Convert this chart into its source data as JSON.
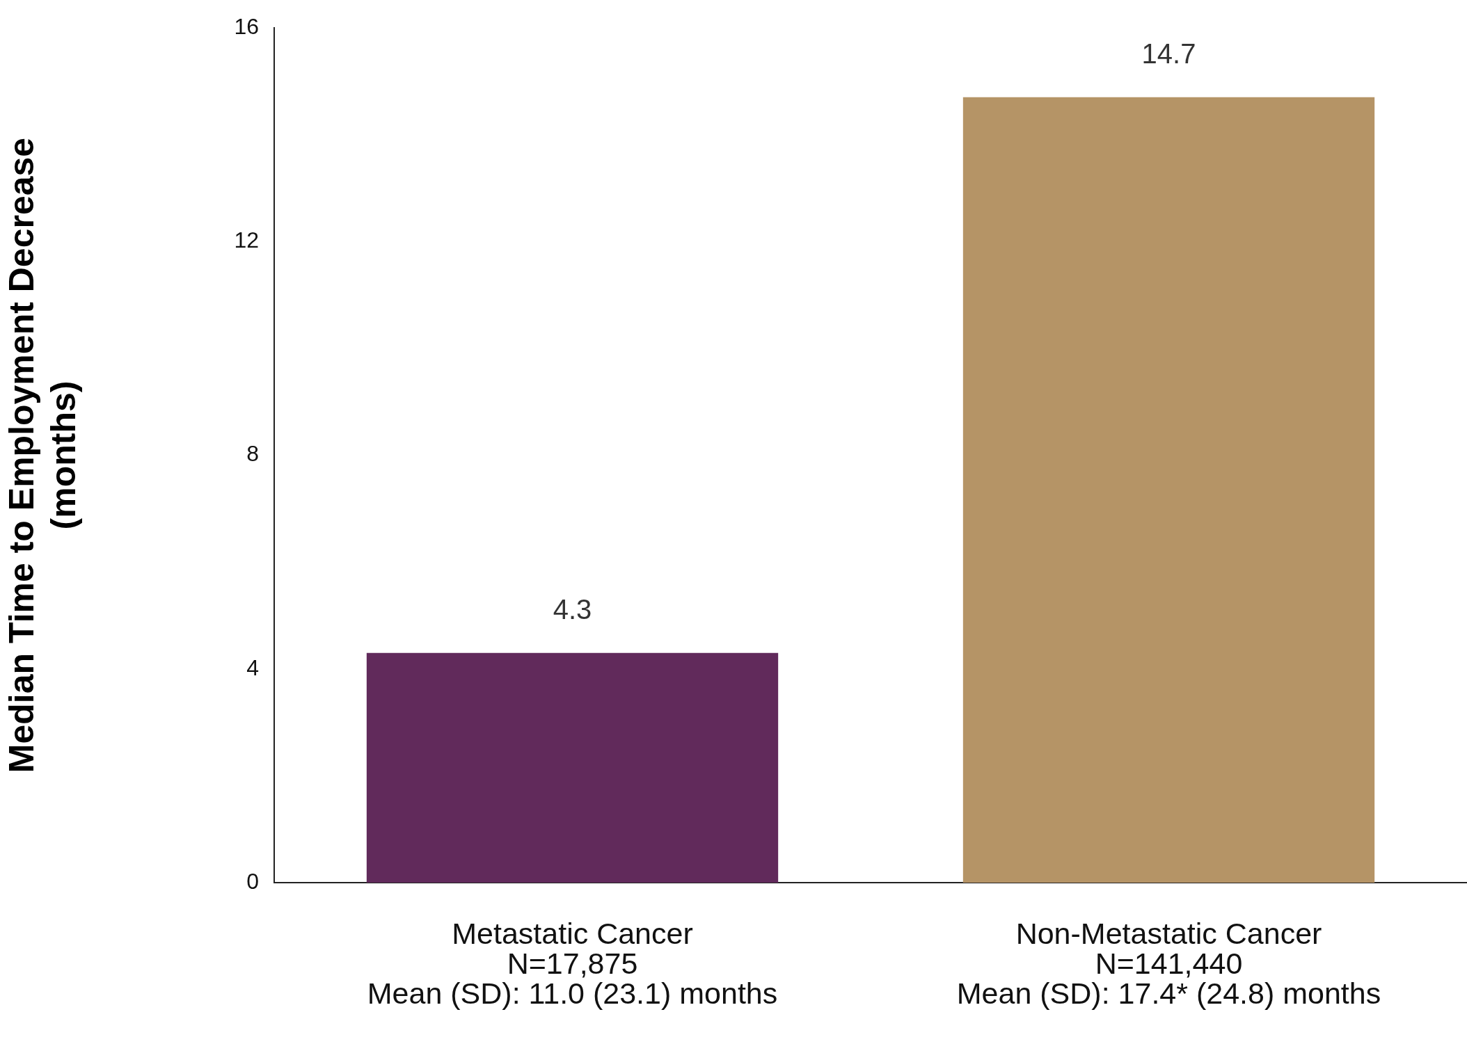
{
  "chart_data": {
    "type": "bar",
    "ylabel": "Median Time to Employment Decrease\n(months)",
    "categories": [
      "Metastatic Cancer\nN=17,875\nMean (SD): 11.0 (23.1) months",
      "Non-Metastatic Cancer\nN=141,440\nMean (SD): 17.4* (24.8) months"
    ],
    "values": [
      4.3,
      14.7
    ],
    "colors": [
      "#612a5b",
      "#b59466"
    ],
    "ylim": [
      0,
      16
    ],
    "yticks": [
      0,
      4,
      8,
      12,
      16
    ],
    "grid": false,
    "legend": false,
    "data_labels": true
  }
}
